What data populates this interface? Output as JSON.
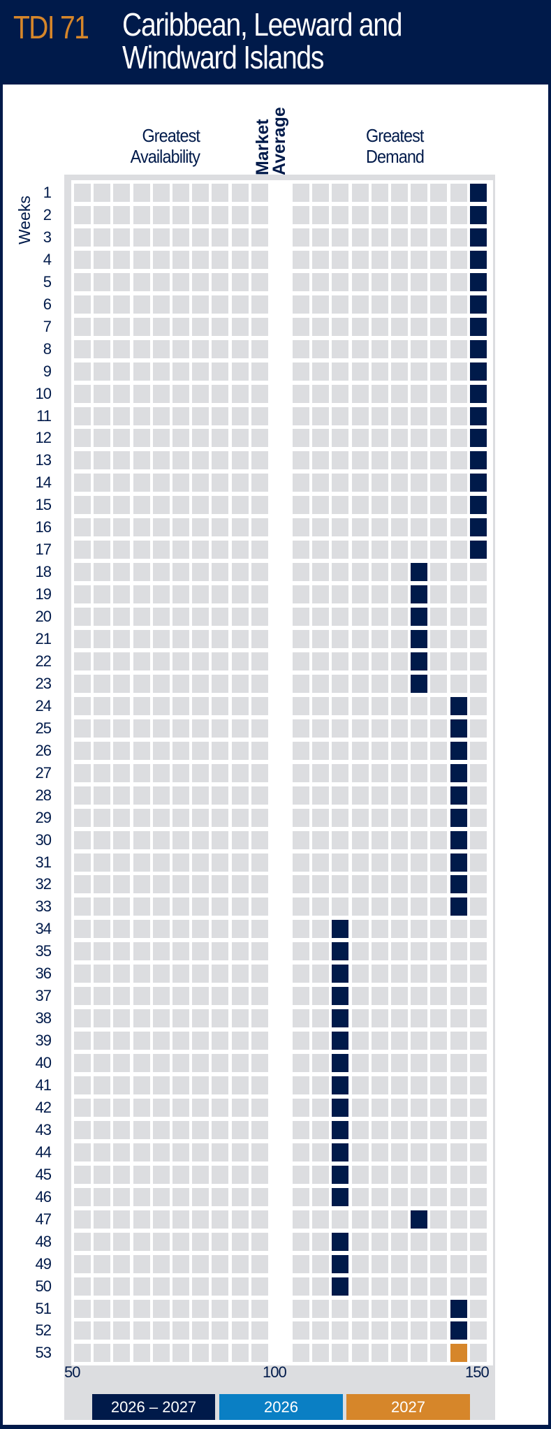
{
  "header": {
    "code": "TDI 71",
    "title_line1": "Caribbean, Leeward and",
    "title_line2": "Windward Islands"
  },
  "labels": {
    "left": "Greatest",
    "left2": "Availability",
    "center1": "Market",
    "center2": "Average",
    "right": "Greatest",
    "right2": "Demand",
    "weeks": "Weeks"
  },
  "colors": {
    "navy": "#001a4a",
    "blue": "#0a7fc4",
    "orange": "#d6862a",
    "gray": "#dcdde0"
  },
  "chart_data": {
    "type": "heatmap",
    "title": "TDI 71 Caribbean, Leeward and Windward Islands",
    "xlabel": "Greatest Availability ← Market Average → Greatest Demand",
    "ylabel": "Weeks",
    "xlim": [
      50,
      150
    ],
    "bin_size": 5,
    "x_ticks": [
      "50",
      "100",
      "150"
    ],
    "legend": [
      {
        "label": "2026 – 2027",
        "color": "navy"
      },
      {
        "label": "2026",
        "color": "blue"
      },
      {
        "label": "2027",
        "color": "orange"
      }
    ],
    "weeks": [
      {
        "w": "1",
        "v": 147.5,
        "c": "navy"
      },
      {
        "w": "2",
        "v": 147.5,
        "c": "navy"
      },
      {
        "w": "3",
        "v": 147.5,
        "c": "navy"
      },
      {
        "w": "4",
        "v": 147.5,
        "c": "navy"
      },
      {
        "w": "5",
        "v": 147.5,
        "c": "navy"
      },
      {
        "w": "6",
        "v": 147.5,
        "c": "navy"
      },
      {
        "w": "7",
        "v": 147.5,
        "c": "navy"
      },
      {
        "w": "8",
        "v": 147.5,
        "c": "navy"
      },
      {
        "w": "9",
        "v": 147.5,
        "c": "navy"
      },
      {
        "w": "10",
        "v": 147.5,
        "c": "navy"
      },
      {
        "w": "11",
        "v": 147.5,
        "c": "navy"
      },
      {
        "w": "12",
        "v": 147.5,
        "c": "navy"
      },
      {
        "w": "13",
        "v": 147.5,
        "c": "navy"
      },
      {
        "w": "14",
        "v": 147.5,
        "c": "navy"
      },
      {
        "w": "15",
        "v": 147.5,
        "c": "navy"
      },
      {
        "w": "16",
        "v": 147.5,
        "c": "navy"
      },
      {
        "w": "17",
        "v": 147.5,
        "c": "navy"
      },
      {
        "w": "18",
        "v": 132.5,
        "c": "navy"
      },
      {
        "w": "19",
        "v": 132.5,
        "c": "navy"
      },
      {
        "w": "20",
        "v": 132.5,
        "c": "navy"
      },
      {
        "w": "21",
        "v": 132.5,
        "c": "navy"
      },
      {
        "w": "22",
        "v": 132.5,
        "c": "navy"
      },
      {
        "w": "23",
        "v": 132.5,
        "c": "navy"
      },
      {
        "w": "24",
        "v": 142.5,
        "c": "navy"
      },
      {
        "w": "25",
        "v": 142.5,
        "c": "navy"
      },
      {
        "w": "26",
        "v": 142.5,
        "c": "navy"
      },
      {
        "w": "27",
        "v": 142.5,
        "c": "navy"
      },
      {
        "w": "28",
        "v": 142.5,
        "c": "navy"
      },
      {
        "w": "29",
        "v": 142.5,
        "c": "navy"
      },
      {
        "w": "30",
        "v": 142.5,
        "c": "navy"
      },
      {
        "w": "31",
        "v": 142.5,
        "c": "navy"
      },
      {
        "w": "32",
        "v": 142.5,
        "c": "navy"
      },
      {
        "w": "33",
        "v": 142.5,
        "c": "navy"
      },
      {
        "w": "34",
        "v": 112.5,
        "c": "navy"
      },
      {
        "w": "35",
        "v": 112.5,
        "c": "navy"
      },
      {
        "w": "36",
        "v": 112.5,
        "c": "navy"
      },
      {
        "w": "37",
        "v": 112.5,
        "c": "navy"
      },
      {
        "w": "38",
        "v": 112.5,
        "c": "navy"
      },
      {
        "w": "39",
        "v": 112.5,
        "c": "navy"
      },
      {
        "w": "40",
        "v": 112.5,
        "c": "navy"
      },
      {
        "w": "41",
        "v": 112.5,
        "c": "navy"
      },
      {
        "w": "42",
        "v": 112.5,
        "c": "navy"
      },
      {
        "w": "43",
        "v": 112.5,
        "c": "navy"
      },
      {
        "w": "44",
        "v": 112.5,
        "c": "navy"
      },
      {
        "w": "45",
        "v": 112.5,
        "c": "navy"
      },
      {
        "w": "46",
        "v": 112.5,
        "c": "navy"
      },
      {
        "w": "47",
        "v": 132.5,
        "c": "navy"
      },
      {
        "w": "48",
        "v": 112.5,
        "c": "navy"
      },
      {
        "w": "49",
        "v": 112.5,
        "c": "navy"
      },
      {
        "w": "50",
        "v": 112.5,
        "c": "navy"
      },
      {
        "w": "51",
        "v": 142.5,
        "c": "navy"
      },
      {
        "w": "52",
        "v": 142.5,
        "c": "navy"
      },
      {
        "w": "53",
        "v": 142.5,
        "c": "orange"
      }
    ]
  }
}
